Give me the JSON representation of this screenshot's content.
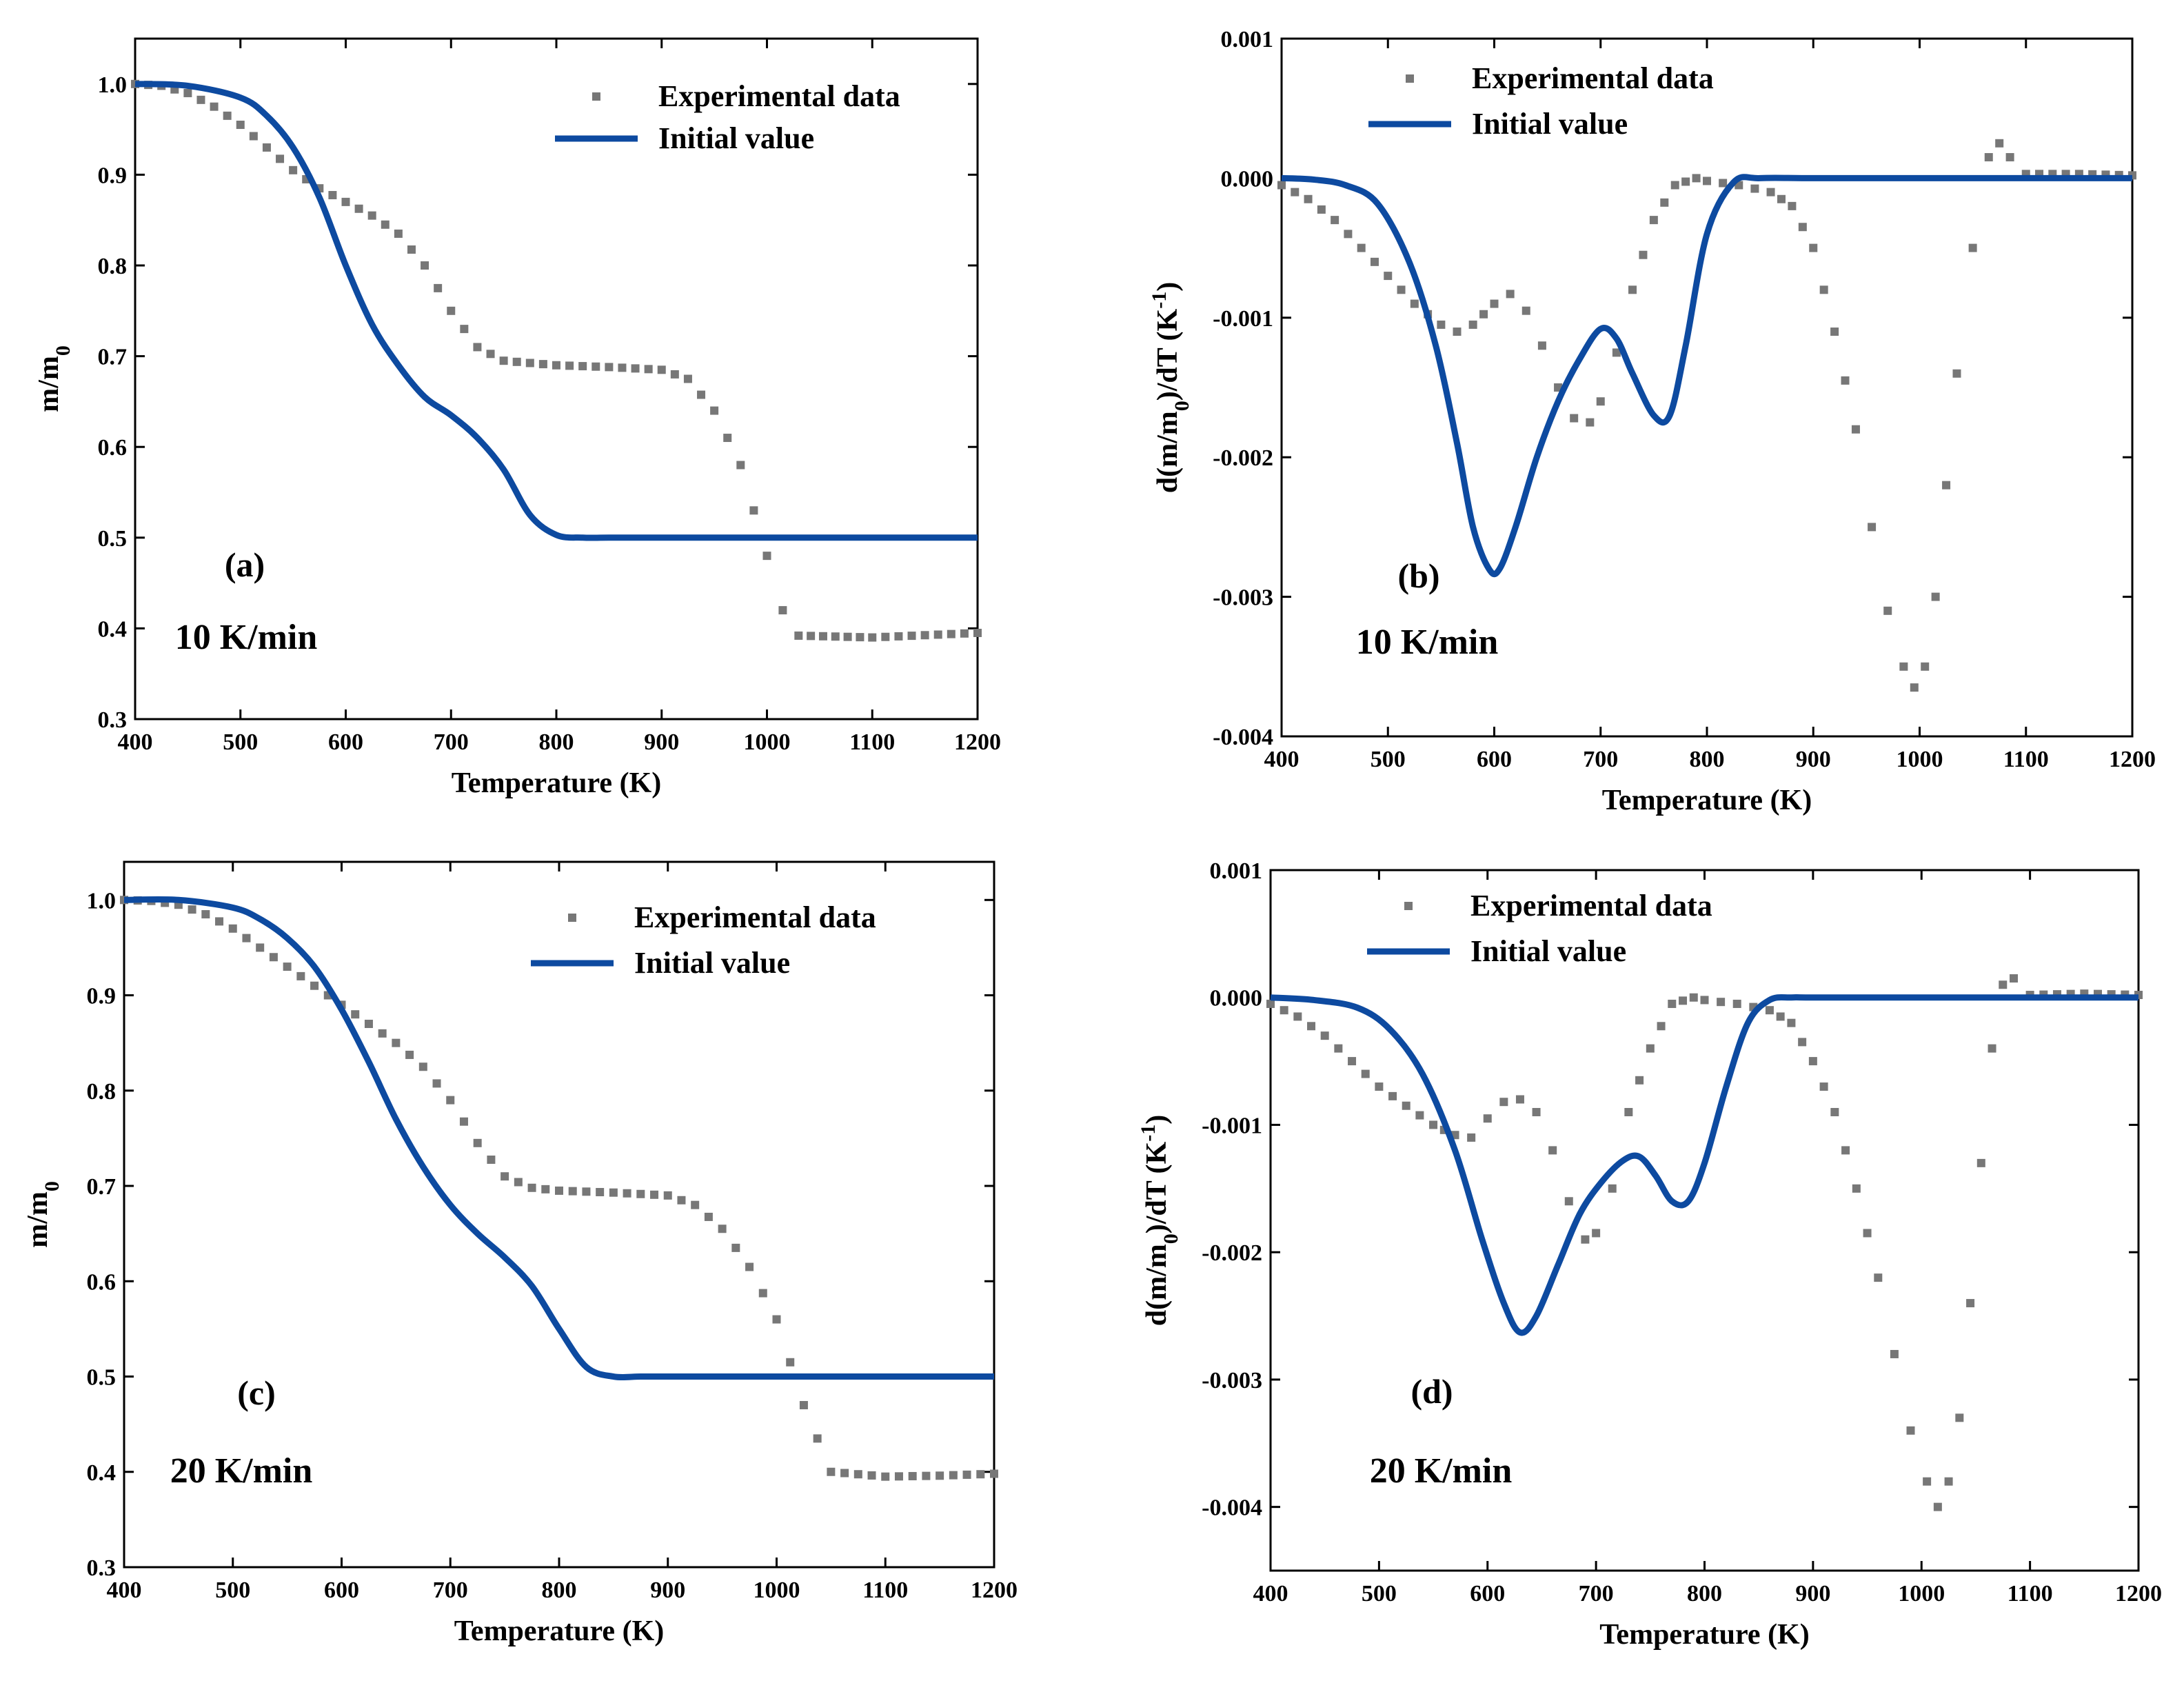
{
  "chart_data": [
    {
      "id": "a",
      "type": "scatter+line",
      "xlabel": "Temperature (K)",
      "ylabel": "m/m",
      "ylabel_sub": "0",
      "xlim": [
        400,
        1200
      ],
      "ylim": [
        0.3,
        1.05
      ],
      "xticks": [
        400,
        500,
        600,
        700,
        800,
        900,
        1000,
        1100,
        1200
      ],
      "xtick_labels": [
        "400",
        "500",
        "600",
        "700",
        "800",
        "900",
        "1000",
        "1100",
        "1200"
      ],
      "yticks": [
        0.3,
        0.4,
        0.5,
        0.6,
        0.7,
        0.8,
        0.9,
        1.0
      ],
      "ytick_labels": [
        "0.3",
        "0.4",
        "0.5",
        "0.6",
        "0.7",
        "0.8",
        "0.9",
        "1.0"
      ],
      "legend": [
        "Experimental data",
        "Initial value"
      ],
      "panel_label": "(a)",
      "rate_label": "10 K/min",
      "colors": {
        "experimental": "#777777",
        "model": "#0d4aa0"
      },
      "series": [
        {
          "name": "Experimental data",
          "style": "markers",
          "x": [
            400,
            425,
            450,
            475,
            500,
            525,
            550,
            575,
            600,
            625,
            650,
            675,
            700,
            725,
            750,
            800,
            850,
            900,
            925,
            950,
            975,
            1000,
            1015,
            1030,
            1100,
            1200
          ],
          "y": [
            1.0,
            0.998,
            0.99,
            0.975,
            0.955,
            0.93,
            0.905,
            0.885,
            0.87,
            0.855,
            0.835,
            0.8,
            0.75,
            0.71,
            0.695,
            0.69,
            0.688,
            0.685,
            0.675,
            0.64,
            0.58,
            0.48,
            0.42,
            0.392,
            0.39,
            0.395
          ]
        },
        {
          "name": "Initial value",
          "style": "line",
          "x": [
            400,
            450,
            500,
            525,
            550,
            575,
            600,
            625,
            650,
            675,
            700,
            725,
            750,
            775,
            800,
            825,
            850,
            900,
            1000,
            1100,
            1200
          ],
          "y": [
            1.0,
            0.998,
            0.985,
            0.965,
            0.93,
            0.875,
            0.8,
            0.735,
            0.69,
            0.655,
            0.635,
            0.61,
            0.575,
            0.525,
            0.503,
            0.5,
            0.5,
            0.5,
            0.5,
            0.5,
            0.5
          ]
        }
      ]
    },
    {
      "id": "b",
      "type": "scatter+line",
      "xlabel": "Temperature (K)",
      "ylabel": "d(m/m",
      "ylabel_sub": "0",
      "ylabel_mid": ")/dT (K",
      "ylabel_sup": "-1",
      "ylabel_end": ")",
      "xlim": [
        400,
        1200
      ],
      "ylim": [
        -0.004,
        0.001
      ],
      "xticks": [
        400,
        500,
        600,
        700,
        800,
        900,
        1000,
        1100,
        1200
      ],
      "xtick_labels": [
        "400",
        "500",
        "600",
        "700",
        "800",
        "900",
        "1000",
        "1100",
        "1200"
      ],
      "yticks": [
        -0.004,
        -0.003,
        -0.002,
        -0.001,
        0.0,
        0.001
      ],
      "ytick_labels": [
        "-0.004",
        "-0.003",
        "-0.002",
        "-0.001",
        "0.000",
        "0.001"
      ],
      "legend": [
        "Experimental data",
        "Initial value"
      ],
      "panel_label": "(b)",
      "rate_label": "10 K/min",
      "colors": {
        "experimental": "#777777",
        "model": "#0d4aa0"
      },
      "series": [
        {
          "name": "Experimental data",
          "style": "markers",
          "x": [
            400,
            425,
            450,
            475,
            500,
            525,
            550,
            565,
            580,
            600,
            615,
            630,
            645,
            660,
            675,
            690,
            700,
            715,
            730,
            750,
            770,
            790,
            800,
            830,
            860,
            880,
            900,
            920,
            940,
            955,
            970,
            985,
            995,
            1005,
            1015,
            1025,
            1035,
            1050,
            1065,
            1075,
            1085,
            1100,
            1150,
            1200
          ],
          "y": [
            -5e-05,
            -0.00015,
            -0.0003,
            -0.0005,
            -0.0007,
            -0.0009,
            -0.00105,
            -0.0011,
            -0.00105,
            -0.0009,
            -0.00083,
            -0.00095,
            -0.0012,
            -0.0015,
            -0.00172,
            -0.00175,
            -0.0016,
            -0.00125,
            -0.0008,
            -0.0003,
            -5e-05,
            0.0,
            -2e-05,
            -5e-05,
            -0.0001,
            -0.0002,
            -0.0005,
            -0.0011,
            -0.0018,
            -0.0025,
            -0.0031,
            -0.0035,
            -0.00365,
            -0.0035,
            -0.003,
            -0.0022,
            -0.0014,
            -0.0005,
            0.00015,
            0.00025,
            0.00015,
            3e-05,
            3e-05,
            2e-05
          ]
        },
        {
          "name": "Initial value",
          "style": "line",
          "x": [
            400,
            430,
            460,
            490,
            520,
            545,
            565,
            580,
            595,
            605,
            620,
            640,
            660,
            680,
            700,
            715,
            730,
            750,
            765,
            780,
            800,
            825,
            850,
            900,
            1000,
            1100,
            1200
          ],
          "y": [
            0.0,
            -1e-05,
            -5e-05,
            -0.00018,
            -0.0006,
            -0.0012,
            -0.0019,
            -0.0025,
            -0.0028,
            -0.0028,
            -0.0025,
            -0.002,
            -0.0016,
            -0.0013,
            -0.00108,
            -0.00115,
            -0.0014,
            -0.0017,
            -0.0017,
            -0.0012,
            -0.0004,
            -3e-05,
            0.0,
            0.0,
            0.0,
            0.0,
            0.0
          ]
        }
      ]
    },
    {
      "id": "c",
      "type": "scatter+line",
      "xlabel": "Temperature (K)",
      "ylabel": "m/m",
      "ylabel_sub": "0",
      "xlim": [
        400,
        1200
      ],
      "ylim": [
        0.3,
        1.04
      ],
      "xticks": [
        400,
        500,
        600,
        700,
        800,
        900,
        1000,
        1100,
        1200
      ],
      "xtick_labels": [
        "400",
        "500",
        "600",
        "700",
        "800",
        "900",
        "1000",
        "1100",
        "1200"
      ],
      "yticks": [
        0.3,
        0.4,
        0.5,
        0.6,
        0.7,
        0.8,
        0.9,
        1.0
      ],
      "ytick_labels": [
        "0.3",
        "0.4",
        "0.5",
        "0.6",
        "0.7",
        "0.8",
        "0.9",
        "1.0"
      ],
      "legend": [
        "Experimental data",
        "Initial value"
      ],
      "panel_label": "(c)",
      "rate_label": "20 K/min",
      "colors": {
        "experimental": "#777777",
        "model": "#0d4aa0"
      },
      "series": [
        {
          "name": "Experimental data",
          "style": "markers",
          "x": [
            400,
            425,
            450,
            475,
            500,
            525,
            550,
            575,
            600,
            625,
            650,
            675,
            700,
            725,
            750,
            775,
            800,
            850,
            900,
            925,
            950,
            975,
            1000,
            1025,
            1050,
            1100,
            1150,
            1200
          ],
          "y": [
            1.0,
            0.999,
            0.995,
            0.985,
            0.97,
            0.95,
            0.93,
            0.91,
            0.89,
            0.87,
            0.85,
            0.825,
            0.79,
            0.745,
            0.71,
            0.698,
            0.695,
            0.693,
            0.69,
            0.68,
            0.655,
            0.615,
            0.56,
            0.47,
            0.4,
            0.395,
            0.396,
            0.398
          ]
        },
        {
          "name": "Initial value",
          "style": "line",
          "x": [
            400,
            450,
            500,
            525,
            550,
            575,
            600,
            625,
            650,
            675,
            700,
            725,
            750,
            775,
            800,
            825,
            850,
            875,
            900,
            1000,
            1100,
            1200
          ],
          "y": [
            1.0,
            1.0,
            0.992,
            0.98,
            0.96,
            0.93,
            0.885,
            0.83,
            0.77,
            0.72,
            0.68,
            0.65,
            0.625,
            0.595,
            0.55,
            0.51,
            0.5,
            0.5,
            0.5,
            0.5,
            0.5,
            0.5
          ]
        }
      ]
    },
    {
      "id": "d",
      "type": "scatter+line",
      "xlabel": "Temperature (K)",
      "ylabel": "d(m/m",
      "ylabel_sub": "0",
      "ylabel_mid": ")/dT (K",
      "ylabel_sup": "-1",
      "ylabel_end": ")",
      "xlim": [
        400,
        1200
      ],
      "ylim": [
        -0.0045,
        0.001
      ],
      "xticks": [
        400,
        500,
        600,
        700,
        800,
        900,
        1000,
        1100,
        1200
      ],
      "xtick_labels": [
        "400",
        "500",
        "600",
        "700",
        "800",
        "900",
        "1000",
        "1100",
        "1200"
      ],
      "yticks": [
        -0.004,
        -0.003,
        -0.002,
        -0.001,
        0.0,
        0.001
      ],
      "ytick_labels": [
        "-0.004",
        "-0.003",
        "-0.002",
        "-0.001",
        "0.000",
        "0.001"
      ],
      "legend": [
        "Experimental data",
        "Initial value"
      ],
      "panel_label": "(d)",
      "rate_label": "20 K/min",
      "colors": {
        "experimental": "#777777",
        "model": "#0d4aa0"
      },
      "series": [
        {
          "name": "Experimental data",
          "style": "markers",
          "x": [
            400,
            425,
            450,
            475,
            500,
            525,
            550,
            570,
            585,
            600,
            615,
            630,
            645,
            660,
            675,
            690,
            700,
            715,
            730,
            750,
            770,
            790,
            800,
            830,
            860,
            880,
            900,
            920,
            940,
            960,
            975,
            990,
            1005,
            1015,
            1025,
            1035,
            1045,
            1055,
            1065,
            1075,
            1085,
            1100,
            1150,
            1200
          ],
          "y": [
            -5e-05,
            -0.00015,
            -0.0003,
            -0.0005,
            -0.0007,
            -0.00085,
            -0.001,
            -0.00108,
            -0.0011,
            -0.00095,
            -0.00082,
            -0.0008,
            -0.0009,
            -0.0012,
            -0.0016,
            -0.0019,
            -0.00185,
            -0.0015,
            -0.0009,
            -0.0004,
            -5e-05,
            0.0,
            -2e-05,
            -5e-05,
            -0.0001,
            -0.0002,
            -0.0005,
            -0.0009,
            -0.0015,
            -0.0022,
            -0.0028,
            -0.0034,
            -0.0038,
            -0.004,
            -0.0038,
            -0.0033,
            -0.0024,
            -0.0013,
            -0.0004,
            0.0001,
            0.00015,
            2e-05,
            3e-05,
            2e-05
          ]
        },
        {
          "name": "Initial value",
          "style": "line",
          "x": [
            400,
            440,
            480,
            510,
            540,
            570,
            595,
            615,
            630,
            645,
            665,
            685,
            705,
            725,
            740,
            755,
            770,
            785,
            800,
            820,
            840,
            860,
            880,
            900,
            1000,
            1100,
            1200
          ],
          "y": [
            0.0,
            -2e-05,
            -8e-05,
            -0.00025,
            -0.0006,
            -0.0012,
            -0.0019,
            -0.0024,
            -0.00263,
            -0.0025,
            -0.0021,
            -0.0017,
            -0.00145,
            -0.00128,
            -0.00125,
            -0.0014,
            -0.0016,
            -0.0016,
            -0.0013,
            -0.0007,
            -0.0002,
            -2e-05,
            0.0,
            0.0,
            0.0,
            0.0,
            0.0
          ]
        }
      ]
    }
  ]
}
